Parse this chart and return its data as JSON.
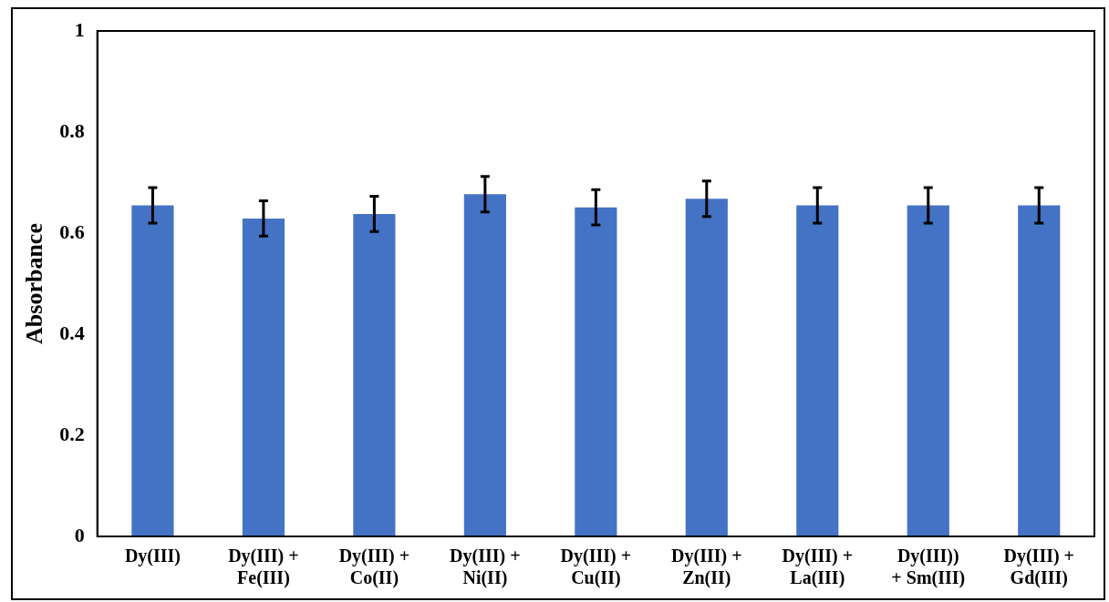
{
  "chart_data": {
    "type": "bar",
    "ylabel": "Absorbance",
    "categories": [
      "Dy(III)",
      "Dy(III) +\nFe(III)",
      "Dy(III) +\nCo(II)",
      "Dy(III) +\nNi(II)",
      "Dy(III) +\nCu(II)",
      "Dy(III) +\nZn(II)",
      "Dy(III) +\nLa(III)",
      "Dy(III))\n+ Sm(III)",
      "Dy(III) +\nGd(III)"
    ],
    "values": [
      0.655,
      0.629,
      0.638,
      0.677,
      0.651,
      0.668,
      0.655,
      0.655,
      0.655
    ],
    "errors": [
      0.035,
      0.035,
      0.035,
      0.035,
      0.035,
      0.035,
      0.035,
      0.035,
      0.035
    ],
    "color": "#4472c4",
    "ylim": [
      0,
      1
    ],
    "yticks": [
      0,
      0.2,
      0.4,
      0.6,
      0.8,
      1
    ],
    "grid": false,
    "legend": false
  }
}
